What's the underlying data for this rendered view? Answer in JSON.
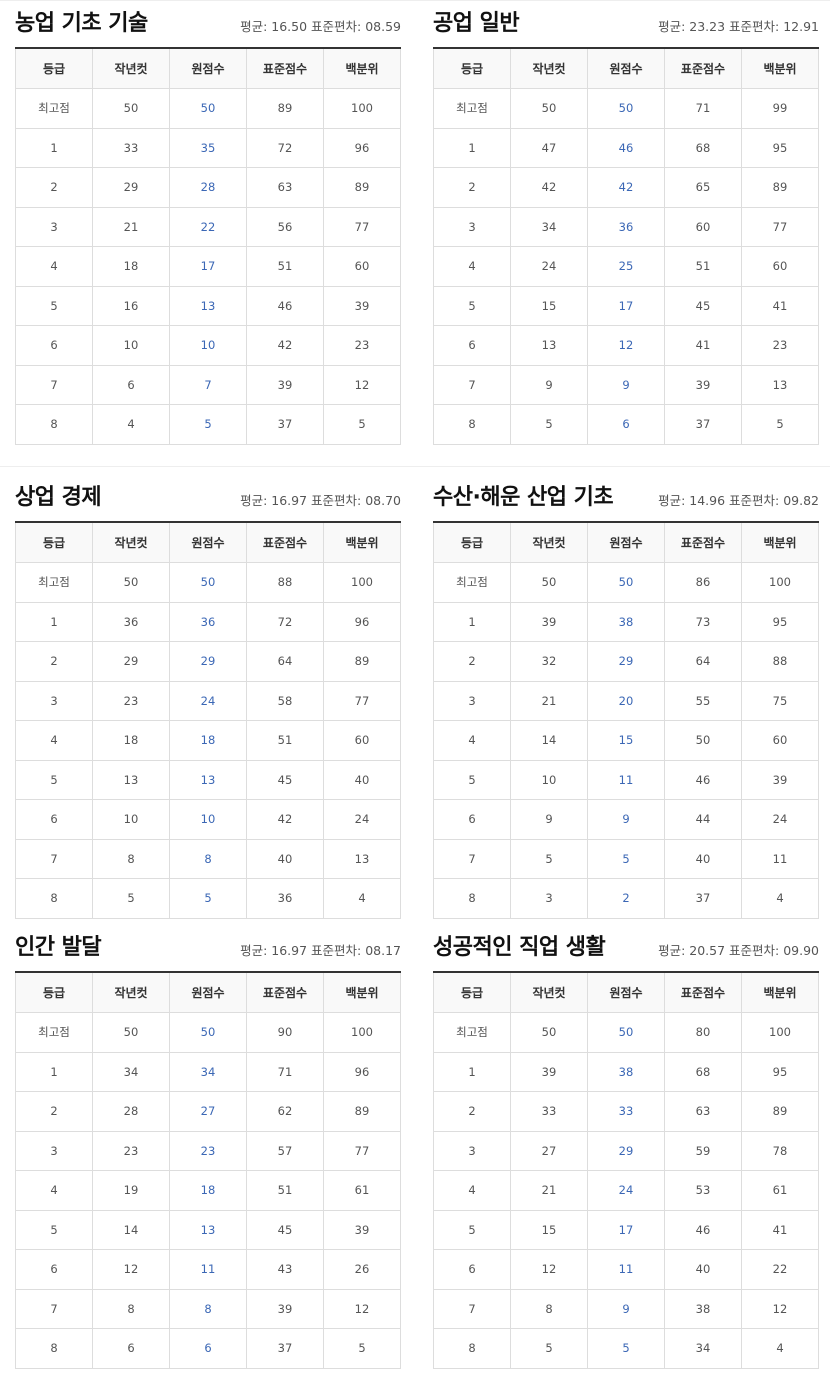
{
  "headers": [
    "등급",
    "작년컷",
    "원점수",
    "표준점수",
    "백분위"
  ],
  "panels": [
    {
      "title": "농업 기초 기술",
      "stats": "평균: 16.50 표준편차: 08.59",
      "rows": [
        [
          "최고점",
          "50",
          "50",
          "89",
          "100"
        ],
        [
          "1",
          "33",
          "35",
          "72",
          "96"
        ],
        [
          "2",
          "29",
          "28",
          "63",
          "89"
        ],
        [
          "3",
          "21",
          "22",
          "56",
          "77"
        ],
        [
          "4",
          "18",
          "17",
          "51",
          "60"
        ],
        [
          "5",
          "16",
          "13",
          "46",
          "39"
        ],
        [
          "6",
          "10",
          "10",
          "42",
          "23"
        ],
        [
          "7",
          "6",
          "7",
          "39",
          "12"
        ],
        [
          "8",
          "4",
          "5",
          "37",
          "5"
        ]
      ]
    },
    {
      "title": "공업 일반",
      "stats": "평균: 23.23 표준편차: 12.91",
      "rows": [
        [
          "최고점",
          "50",
          "50",
          "71",
          "99"
        ],
        [
          "1",
          "47",
          "46",
          "68",
          "95"
        ],
        [
          "2",
          "42",
          "42",
          "65",
          "89"
        ],
        [
          "3",
          "34",
          "36",
          "60",
          "77"
        ],
        [
          "4",
          "24",
          "25",
          "51",
          "60"
        ],
        [
          "5",
          "15",
          "17",
          "45",
          "41"
        ],
        [
          "6",
          "13",
          "12",
          "41",
          "23"
        ],
        [
          "7",
          "9",
          "9",
          "39",
          "13"
        ],
        [
          "8",
          "5",
          "6",
          "37",
          "5"
        ]
      ]
    },
    {
      "title": "상업 경제",
      "stats": "평균: 16.97 표준편차: 08.70",
      "rows": [
        [
          "최고점",
          "50",
          "50",
          "88",
          "100"
        ],
        [
          "1",
          "36",
          "36",
          "72",
          "96"
        ],
        [
          "2",
          "29",
          "29",
          "64",
          "89"
        ],
        [
          "3",
          "23",
          "24",
          "58",
          "77"
        ],
        [
          "4",
          "18",
          "18",
          "51",
          "60"
        ],
        [
          "5",
          "13",
          "13",
          "45",
          "40"
        ],
        [
          "6",
          "10",
          "10",
          "42",
          "24"
        ],
        [
          "7",
          "8",
          "8",
          "40",
          "13"
        ],
        [
          "8",
          "5",
          "5",
          "36",
          "4"
        ]
      ]
    },
    {
      "title": "수산·해운 산업 기초",
      "stats": "평균: 14.96 표준편차: 09.82",
      "rows": [
        [
          "최고점",
          "50",
          "50",
          "86",
          "100"
        ],
        [
          "1",
          "39",
          "38",
          "73",
          "95"
        ],
        [
          "2",
          "32",
          "29",
          "64",
          "88"
        ],
        [
          "3",
          "21",
          "20",
          "55",
          "75"
        ],
        [
          "4",
          "14",
          "15",
          "50",
          "60"
        ],
        [
          "5",
          "10",
          "11",
          "46",
          "39"
        ],
        [
          "6",
          "9",
          "9",
          "44",
          "24"
        ],
        [
          "7",
          "5",
          "5",
          "40",
          "11"
        ],
        [
          "8",
          "3",
          "2",
          "37",
          "4"
        ]
      ]
    },
    {
      "title": "인간 발달",
      "stats": "평균: 16.97 표준편차: 08.17",
      "rows": [
        [
          "최고점",
          "50",
          "50",
          "90",
          "100"
        ],
        [
          "1",
          "34",
          "34",
          "71",
          "96"
        ],
        [
          "2",
          "28",
          "27",
          "62",
          "89"
        ],
        [
          "3",
          "23",
          "23",
          "57",
          "77"
        ],
        [
          "4",
          "19",
          "18",
          "51",
          "61"
        ],
        [
          "5",
          "14",
          "13",
          "45",
          "39"
        ],
        [
          "6",
          "12",
          "11",
          "43",
          "26"
        ],
        [
          "7",
          "8",
          "8",
          "39",
          "12"
        ],
        [
          "8",
          "6",
          "6",
          "37",
          "5"
        ]
      ]
    },
    {
      "title": "성공적인 직업 생활",
      "stats": "평균: 20.57 표준편차: 09.90",
      "rows": [
        [
          "최고점",
          "50",
          "50",
          "80",
          "100"
        ],
        [
          "1",
          "39",
          "38",
          "68",
          "95"
        ],
        [
          "2",
          "33",
          "33",
          "63",
          "89"
        ],
        [
          "3",
          "27",
          "29",
          "59",
          "78"
        ],
        [
          "4",
          "21",
          "24",
          "53",
          "61"
        ],
        [
          "5",
          "15",
          "17",
          "46",
          "41"
        ],
        [
          "6",
          "12",
          "11",
          "40",
          "22"
        ],
        [
          "7",
          "8",
          "9",
          "38",
          "12"
        ],
        [
          "8",
          "5",
          "5",
          "34",
          "4"
        ]
      ]
    }
  ]
}
